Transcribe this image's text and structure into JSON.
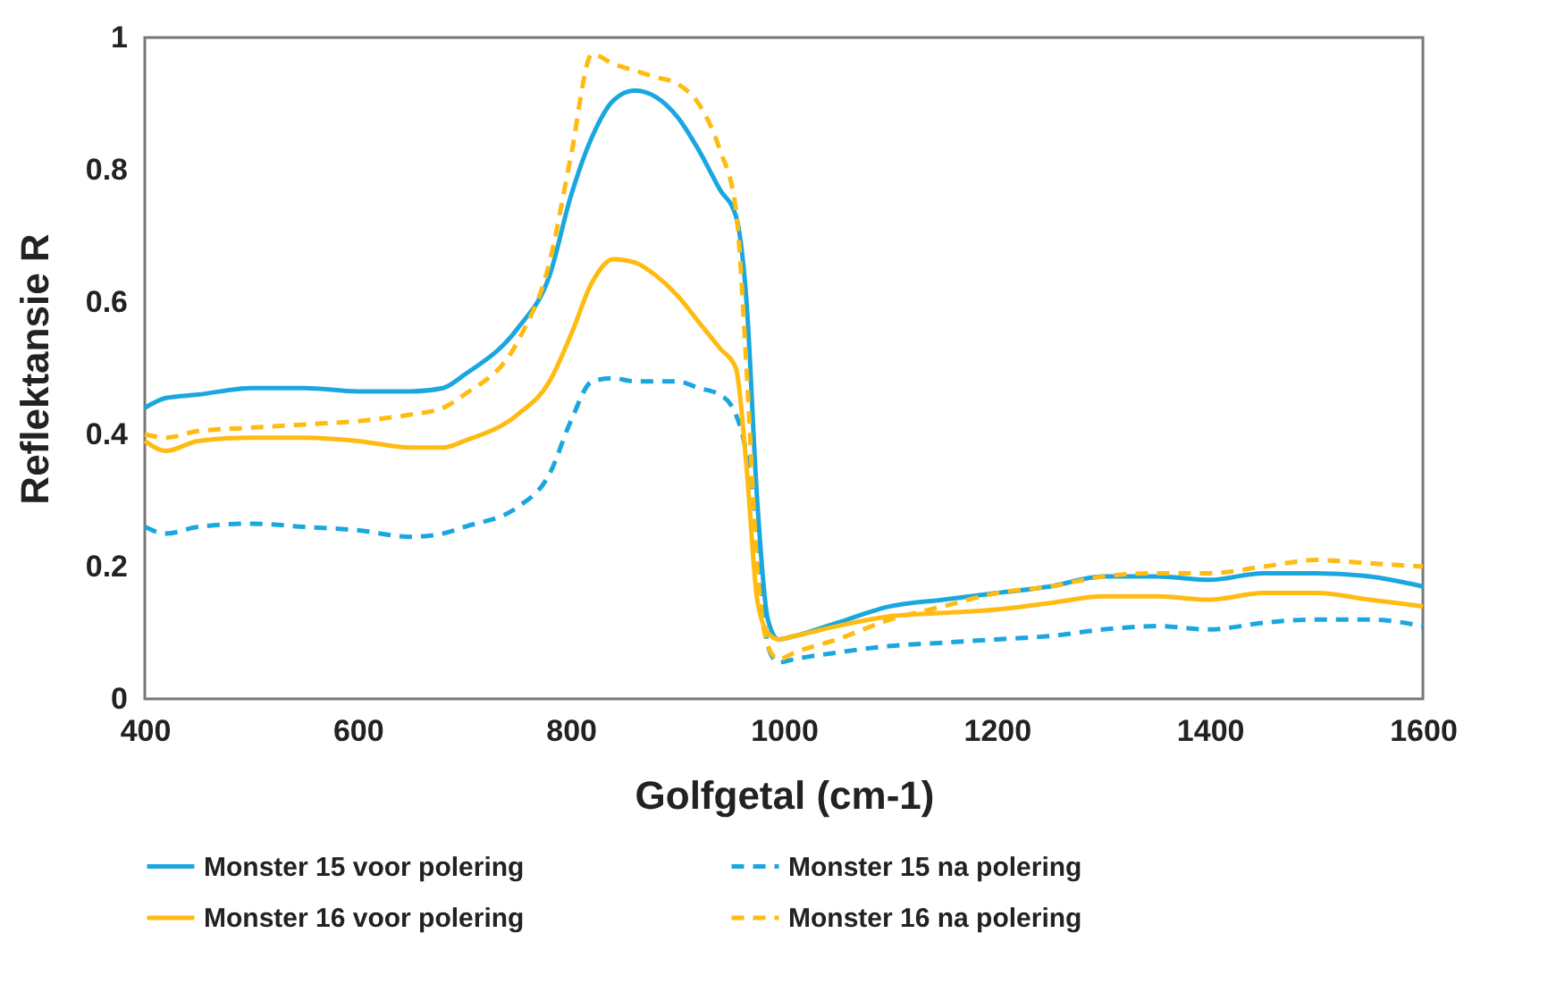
{
  "chart_data": {
    "type": "line",
    "xlabel": "Golfgetal  (cm-1)",
    "ylabel": "Reflektansie  R",
    "x": [
      400,
      420,
      450,
      500,
      550,
      600,
      650,
      680,
      700,
      750,
      780,
      800,
      820,
      840,
      860,
      880,
      900,
      920,
      940,
      955,
      965,
      975,
      985,
      995,
      1010,
      1050,
      1100,
      1150,
      1200,
      1250,
      1300,
      1350,
      1400,
      1450,
      1500,
      1550,
      1600
    ],
    "series": [
      {
        "name": "Monster 15 voor polering",
        "color": "#1aa7e0",
        "line_style": "solid",
        "values": [
          0.44,
          0.455,
          0.46,
          0.47,
          0.47,
          0.465,
          0.465,
          0.47,
          0.49,
          0.56,
          0.64,
          0.76,
          0.85,
          0.905,
          0.92,
          0.91,
          0.88,
          0.83,
          0.77,
          0.73,
          0.6,
          0.3,
          0.12,
          0.09,
          0.095,
          0.115,
          0.14,
          0.15,
          0.16,
          0.17,
          0.185,
          0.185,
          0.18,
          0.19,
          0.19,
          0.185,
          0.17
        ]
      },
      {
        "name": "Monster 15 na polering",
        "color": "#1aa7e0",
        "line_style": "dashed",
        "values": [
          0.26,
          0.25,
          0.26,
          0.265,
          0.26,
          0.255,
          0.245,
          0.25,
          0.26,
          0.29,
          0.34,
          0.42,
          0.48,
          0.485,
          0.48,
          0.48,
          0.48,
          0.47,
          0.46,
          0.43,
          0.37,
          0.25,
          0.08,
          0.055,
          0.06,
          0.07,
          0.08,
          0.085,
          0.09,
          0.095,
          0.105,
          0.11,
          0.105,
          0.115,
          0.12,
          0.12,
          0.11
        ]
      },
      {
        "name": "Monster 16 voor polering",
        "color": "#ffbb11",
        "line_style": "solid",
        "values": [
          0.39,
          0.375,
          0.39,
          0.395,
          0.395,
          0.39,
          0.38,
          0.38,
          0.39,
          0.43,
          0.48,
          0.55,
          0.63,
          0.665,
          0.66,
          0.64,
          0.61,
          0.57,
          0.53,
          0.5,
          0.35,
          0.15,
          0.1,
          0.09,
          0.095,
          0.11,
          0.125,
          0.13,
          0.135,
          0.145,
          0.155,
          0.155,
          0.15,
          0.16,
          0.16,
          0.15,
          0.14
        ]
      },
      {
        "name": "Monster 16 na polering",
        "color": "#ffbb11",
        "line_style": "dashed",
        "values": [
          0.4,
          0.395,
          0.405,
          0.41,
          0.415,
          0.42,
          0.43,
          0.44,
          0.46,
          0.54,
          0.66,
          0.82,
          0.975,
          0.96,
          0.95,
          0.94,
          0.93,
          0.9,
          0.83,
          0.74,
          0.5,
          0.2,
          0.08,
          0.06,
          0.07,
          0.09,
          0.12,
          0.14,
          0.16,
          0.17,
          0.185,
          0.19,
          0.19,
          0.2,
          0.21,
          0.205,
          0.2
        ]
      }
    ],
    "xlim": [
      400,
      1600
    ],
    "xticks": [
      400,
      600,
      800,
      1000,
      1200,
      1400,
      1600
    ],
    "ylim": [
      0,
      1
    ],
    "yticks": [
      0,
      0.2,
      0.4,
      0.6,
      0.8,
      1
    ],
    "grid": false,
    "legend": "bottom"
  }
}
